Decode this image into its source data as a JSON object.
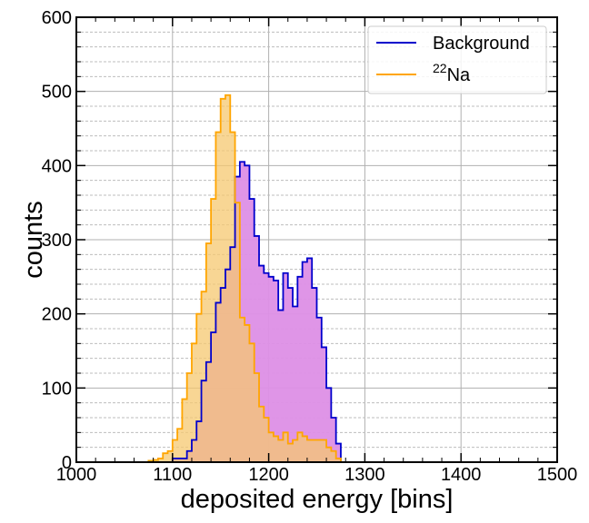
{
  "chart_data": {
    "type": "histogram",
    "xlabel": "deposited energy [bins]",
    "ylabel": "counts",
    "xlim": [
      1000,
      1500
    ],
    "ylim": [
      0,
      600
    ],
    "xticks": [
      1000,
      1100,
      1200,
      1300,
      1400,
      1500
    ],
    "yticks": [
      0,
      100,
      200,
      300,
      400,
      500,
      600
    ],
    "grid": true,
    "legend_position": "top-right",
    "bin_edges": [
      1070,
      1075,
      1080,
      1085,
      1090,
      1095,
      1100,
      1105,
      1110,
      1115,
      1120,
      1125,
      1130,
      1135,
      1140,
      1145,
      1150,
      1155,
      1160,
      1165,
      1170,
      1175,
      1180,
      1185,
      1190,
      1195,
      1200,
      1205,
      1210,
      1215,
      1220,
      1225,
      1230,
      1235,
      1240,
      1245,
      1250,
      1255,
      1260,
      1265,
      1270,
      1275,
      1280
    ],
    "series": [
      {
        "name": "Background",
        "line_color": "#0000cc",
        "fill_color": "#dd8fe6",
        "values": [
          0,
          0,
          0,
          0,
          0,
          0,
          5,
          5,
          5,
          15,
          30,
          55,
          110,
          135,
          175,
          215,
          235,
          260,
          290,
          385,
          405,
          400,
          355,
          305,
          265,
          255,
          250,
          245,
          205,
          255,
          235,
          210,
          250,
          270,
          275,
          235,
          195,
          155,
          100,
          60,
          25,
          0
        ]
      },
      {
        "name": "Na",
        "name_superscript": "22",
        "line_color": "#ffa500",
        "fill_color": "#f5c870",
        "values": [
          0,
          2,
          3,
          5,
          12,
          15,
          30,
          45,
          85,
          120,
          160,
          200,
          230,
          295,
          355,
          445,
          490,
          495,
          445,
          350,
          195,
          185,
          160,
          120,
          75,
          60,
          40,
          35,
          30,
          40,
          25,
          30,
          40,
          35,
          30,
          30,
          30,
          30,
          20,
          15,
          5,
          0
        ]
      }
    ]
  }
}
